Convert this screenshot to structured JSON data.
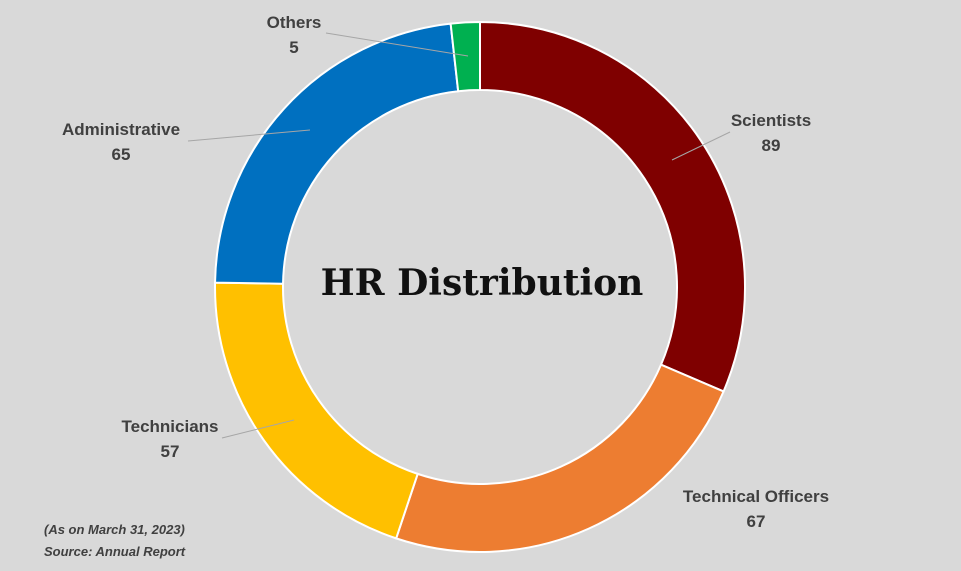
{
  "chart_data": {
    "type": "pie",
    "variant": "donut",
    "title": "HR Distribution",
    "categories": [
      "Scientists",
      "Technical Officers",
      "Technicians",
      "Administrative",
      "Others"
    ],
    "values": [
      89,
      67,
      57,
      65,
      5
    ],
    "colors": [
      "#7f0000",
      "#ed7d31",
      "#ffc000",
      "#0070c0",
      "#00b050"
    ],
    "legend": "none",
    "data_labels": "outside with leader lines"
  },
  "footnote": {
    "date": "(As on March 31, 2023)",
    "source": "Source: Annual Report"
  }
}
